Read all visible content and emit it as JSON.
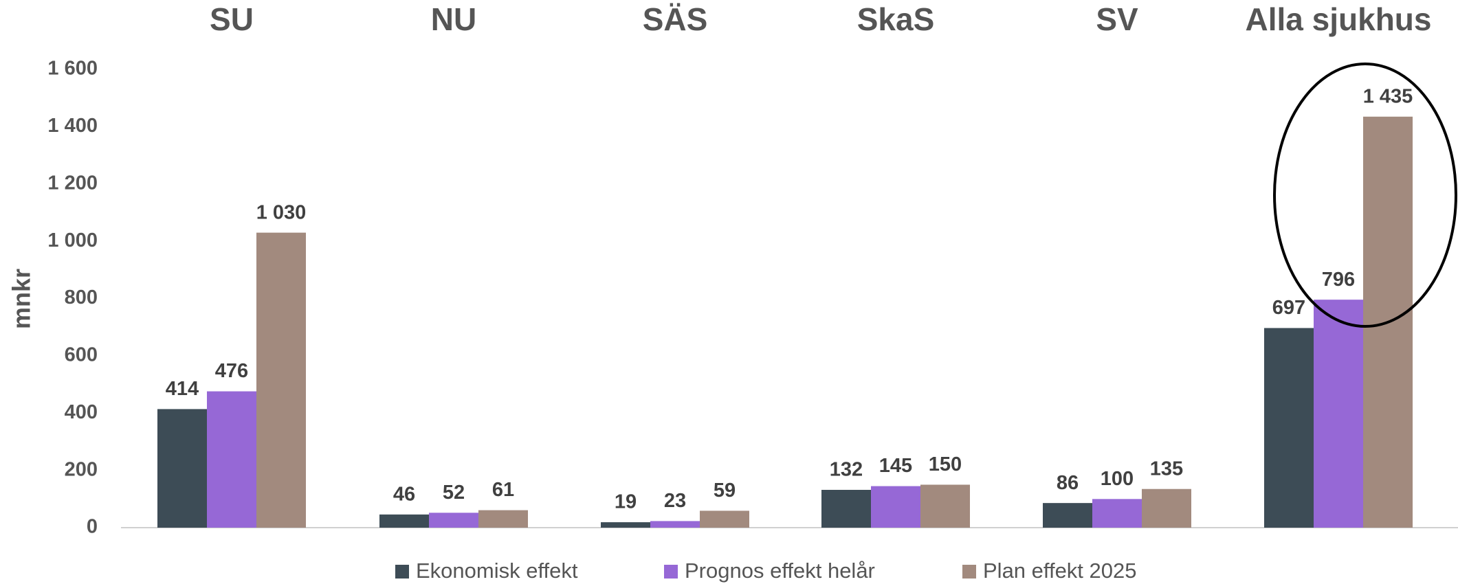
{
  "chart_data": {
    "type": "bar",
    "y_label": "mnkr",
    "categories": [
      "SU",
      "NU",
      "SÄS",
      "SkaS",
      "SV",
      "Alla sjukhus"
    ],
    "series": [
      {
        "name": "Ekonomisk effekt",
        "color": "#3d4c56",
        "values": [
          414,
          46,
          19,
          132,
          86,
          697
        ]
      },
      {
        "name": "Prognos effekt helår",
        "color": "#9668d6",
        "values": [
          476,
          52,
          23,
          145,
          100,
          796
        ]
      },
      {
        "name": "Plan effekt 2025",
        "color": "#a28a7e",
        "values": [
          1030,
          61,
          59,
          150,
          135,
          1435
        ],
        "value_labels": [
          "1 030",
          "61",
          "59",
          "150",
          "135",
          "1 435"
        ]
      }
    ],
    "ylim": [
      0,
      1600
    ],
    "yticks": [
      0,
      200,
      400,
      600,
      800,
      {
        "value": 1000,
        "label": "1 000"
      },
      {
        "value": 1200,
        "label": "1 200"
      },
      {
        "value": 1400,
        "label": "1 400"
      },
      {
        "value": 1600,
        "label": "1 600"
      }
    ],
    "grid": false,
    "legend": "bottom"
  }
}
